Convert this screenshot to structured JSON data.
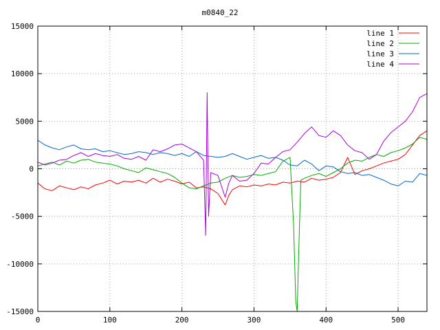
{
  "chart_data": {
    "type": "line",
    "title": "m0840_22",
    "xlabel": "",
    "ylabel": "",
    "xlim": [
      0,
      540
    ],
    "ylim": [
      -15000,
      15000
    ],
    "grid": true,
    "legend_position": "top-right",
    "x_ticks": [
      0,
      100,
      200,
      300,
      400,
      500
    ],
    "y_ticks": [
      -15000,
      -10000,
      -5000,
      0,
      5000,
      10000,
      15000
    ],
    "series": [
      {
        "name": "line 1",
        "color": "#ff0000",
        "points": [
          [
            0,
            -1500
          ],
          [
            10,
            -2100
          ],
          [
            20,
            -2300
          ],
          [
            30,
            -1800
          ],
          [
            40,
            -2000
          ],
          [
            50,
            -2200
          ],
          [
            60,
            -1900
          ],
          [
            70,
            -2100
          ],
          [
            80,
            -1700
          ],
          [
            90,
            -1500
          ],
          [
            100,
            -1200
          ],
          [
            110,
            -1600
          ],
          [
            120,
            -1300
          ],
          [
            130,
            -1400
          ],
          [
            140,
            -1200
          ],
          [
            150,
            -1500
          ],
          [
            160,
            -1000
          ],
          [
            170,
            -1400
          ],
          [
            180,
            -1100
          ],
          [
            190,
            -1300
          ],
          [
            200,
            -1600
          ],
          [
            210,
            -1400
          ],
          [
            220,
            -2000
          ],
          [
            230,
            -1900
          ],
          [
            240,
            -2100
          ],
          [
            250,
            -2600
          ],
          [
            255,
            -3200
          ],
          [
            260,
            -3800
          ],
          [
            265,
            -2800
          ],
          [
            270,
            -2200
          ],
          [
            280,
            -1800
          ],
          [
            290,
            -1900
          ],
          [
            300,
            -1700
          ],
          [
            310,
            -1800
          ],
          [
            320,
            -1600
          ],
          [
            330,
            -1700
          ],
          [
            340,
            -1400
          ],
          [
            350,
            -1500
          ],
          [
            360,
            -1300
          ],
          [
            370,
            -1400
          ],
          [
            380,
            -1000
          ],
          [
            390,
            -1200
          ],
          [
            400,
            -1100
          ],
          [
            410,
            -900
          ],
          [
            420,
            -400
          ],
          [
            430,
            1200
          ],
          [
            440,
            -600
          ],
          [
            450,
            -200
          ],
          [
            460,
            0
          ],
          [
            470,
            300
          ],
          [
            480,
            600
          ],
          [
            490,
            800
          ],
          [
            500,
            1000
          ],
          [
            510,
            1500
          ],
          [
            520,
            2500
          ],
          [
            530,
            3500
          ],
          [
            540,
            4000
          ]
        ]
      },
      {
        "name": "line 2",
        "color": "#00aa00",
        "points": [
          [
            0,
            300
          ],
          [
            10,
            500
          ],
          [
            20,
            700
          ],
          [
            30,
            400
          ],
          [
            40,
            800
          ],
          [
            50,
            600
          ],
          [
            60,
            900
          ],
          [
            70,
            1000
          ],
          [
            80,
            700
          ],
          [
            90,
            600
          ],
          [
            100,
            500
          ],
          [
            110,
            300
          ],
          [
            120,
            0
          ],
          [
            130,
            -200
          ],
          [
            140,
            -400
          ],
          [
            150,
            100
          ],
          [
            160,
            -100
          ],
          [
            170,
            -300
          ],
          [
            180,
            -500
          ],
          [
            190,
            -900
          ],
          [
            200,
            -1500
          ],
          [
            210,
            -2000
          ],
          [
            220,
            -2100
          ],
          [
            230,
            -1800
          ],
          [
            240,
            -1500
          ],
          [
            250,
            -1400
          ],
          [
            260,
            -1000
          ],
          [
            270,
            -700
          ],
          [
            280,
            -900
          ],
          [
            290,
            -800
          ],
          [
            300,
            -600
          ],
          [
            310,
            -700
          ],
          [
            320,
            -500
          ],
          [
            330,
            -300
          ],
          [
            340,
            800
          ],
          [
            350,
            1200
          ],
          [
            355,
            -6000
          ],
          [
            358,
            -14000
          ],
          [
            360,
            -15000
          ],
          [
            362,
            -9000
          ],
          [
            365,
            -1200
          ],
          [
            370,
            -1000
          ],
          [
            380,
            -700
          ],
          [
            390,
            -500
          ],
          [
            400,
            -800
          ],
          [
            410,
            -400
          ],
          [
            420,
            0
          ],
          [
            430,
            600
          ],
          [
            440,
            900
          ],
          [
            450,
            800
          ],
          [
            460,
            1200
          ],
          [
            470,
            1500
          ],
          [
            480,
            1300
          ],
          [
            490,
            1700
          ],
          [
            500,
            1900
          ],
          [
            510,
            2200
          ],
          [
            520,
            2600
          ],
          [
            530,
            3300
          ],
          [
            540,
            3100
          ]
        ]
      },
      {
        "name": "line 3",
        "color": "#0066cc",
        "points": [
          [
            0,
            3000
          ],
          [
            10,
            2500
          ],
          [
            20,
            2200
          ],
          [
            30,
            2000
          ],
          [
            40,
            2300
          ],
          [
            50,
            2500
          ],
          [
            60,
            2100
          ],
          [
            70,
            2000
          ],
          [
            80,
            2100
          ],
          [
            90,
            1800
          ],
          [
            100,
            1900
          ],
          [
            110,
            1700
          ],
          [
            120,
            1500
          ],
          [
            130,
            1600
          ],
          [
            140,
            1800
          ],
          [
            150,
            1700
          ],
          [
            160,
            1500
          ],
          [
            170,
            1700
          ],
          [
            180,
            1600
          ],
          [
            190,
            1400
          ],
          [
            200,
            1600
          ],
          [
            210,
            1300
          ],
          [
            220,
            1800
          ],
          [
            230,
            1400
          ],
          [
            240,
            1300
          ],
          [
            250,
            1200
          ],
          [
            260,
            1300
          ],
          [
            270,
            1600
          ],
          [
            280,
            1300
          ],
          [
            290,
            1000
          ],
          [
            300,
            1200
          ],
          [
            310,
            1400
          ],
          [
            320,
            1100
          ],
          [
            330,
            1200
          ],
          [
            340,
            900
          ],
          [
            350,
            400
          ],
          [
            360,
            300
          ],
          [
            370,
            900
          ],
          [
            380,
            500
          ],
          [
            390,
            -200
          ],
          [
            400,
            300
          ],
          [
            410,
            200
          ],
          [
            420,
            -300
          ],
          [
            430,
            -500
          ],
          [
            440,
            -400
          ],
          [
            450,
            -700
          ],
          [
            460,
            -600
          ],
          [
            470,
            -900
          ],
          [
            480,
            -1200
          ],
          [
            490,
            -1600
          ],
          [
            500,
            -1800
          ],
          [
            510,
            -1300
          ],
          [
            520,
            -1400
          ],
          [
            530,
            -500
          ],
          [
            540,
            -700
          ]
        ]
      },
      {
        "name": "line 4",
        "color": "#aa00dd",
        "points": [
          [
            0,
            700
          ],
          [
            10,
            400
          ],
          [
            20,
            600
          ],
          [
            30,
            900
          ],
          [
            40,
            1000
          ],
          [
            50,
            1400
          ],
          [
            60,
            1700
          ],
          [
            70,
            1300
          ],
          [
            80,
            1600
          ],
          [
            90,
            1400
          ],
          [
            100,
            1300
          ],
          [
            110,
            1500
          ],
          [
            120,
            1100
          ],
          [
            130,
            1000
          ],
          [
            140,
            1300
          ],
          [
            150,
            900
          ],
          [
            160,
            2000
          ],
          [
            170,
            1800
          ],
          [
            180,
            2100
          ],
          [
            190,
            2500
          ],
          [
            200,
            2600
          ],
          [
            210,
            2200
          ],
          [
            220,
            1800
          ],
          [
            230,
            900
          ],
          [
            233,
            -7000
          ],
          [
            235,
            8000
          ],
          [
            237,
            -5000
          ],
          [
            240,
            -400
          ],
          [
            250,
            -700
          ],
          [
            260,
            -3000
          ],
          [
            265,
            -1500
          ],
          [
            270,
            -700
          ],
          [
            280,
            -1300
          ],
          [
            290,
            -1200
          ],
          [
            300,
            -500
          ],
          [
            310,
            600
          ],
          [
            320,
            500
          ],
          [
            330,
            1200
          ],
          [
            340,
            1800
          ],
          [
            350,
            2000
          ],
          [
            360,
            2800
          ],
          [
            370,
            3700
          ],
          [
            380,
            4400
          ],
          [
            390,
            3500
          ],
          [
            400,
            3300
          ],
          [
            410,
            4000
          ],
          [
            420,
            3500
          ],
          [
            430,
            2500
          ],
          [
            440,
            1900
          ],
          [
            450,
            1700
          ],
          [
            460,
            1000
          ],
          [
            470,
            1500
          ],
          [
            480,
            2900
          ],
          [
            490,
            3800
          ],
          [
            500,
            4400
          ],
          [
            510,
            5000
          ],
          [
            520,
            6000
          ],
          [
            530,
            7500
          ],
          [
            540,
            7900
          ]
        ]
      }
    ]
  }
}
